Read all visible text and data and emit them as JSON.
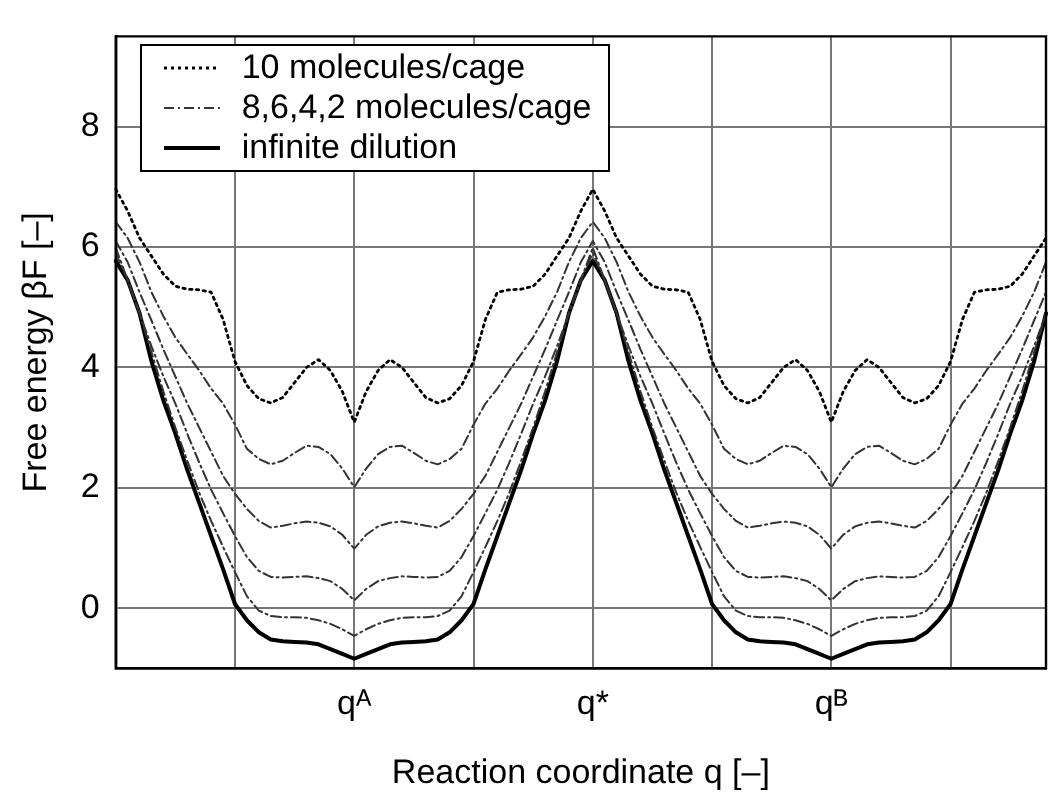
{
  "chart_data": {
    "type": "line",
    "xlabel": "Reaction coordinate q [–]",
    "ylabel": "Free energy βF [–]",
    "categories": [
      null,
      null,
      null,
      null,
      null,
      null,
      null,
      null,
      null,
      null,
      null,
      null,
      null,
      null,
      null,
      null,
      null,
      null,
      null,
      null,
      "qᴬ",
      null,
      null,
      null,
      null,
      null,
      null,
      null,
      null,
      null,
      null,
      null,
      null,
      null,
      null,
      null,
      null,
      null,
      null,
      null,
      "q*",
      null,
      null,
      null,
      null,
      null,
      null,
      null,
      null,
      null,
      null,
      null,
      null,
      null,
      null,
      null,
      null,
      null,
      null,
      null,
      "qᴮ",
      null,
      null,
      null,
      null,
      null,
      null,
      null,
      null,
      null,
      null,
      null,
      null,
      null,
      null,
      null,
      null,
      null,
      null
    ],
    "ylim": [
      -1,
      9.5
    ],
    "yticks": [
      0,
      2,
      4,
      6,
      8
    ],
    "grid": true,
    "legend": "top left",
    "marker": "none",
    "series": [
      {
        "name": "10 molecules/cage",
        "color": "#000000",
        "line_style": "dotted",
        "values": [
          6.96,
          6.6,
          6.15,
          5.85,
          5.55,
          5.35,
          5.3,
          5.29,
          5.25,
          4.8,
          4.1,
          3.7,
          3.48,
          3.41,
          3.5,
          3.75,
          4.0,
          4.13,
          3.95,
          3.6,
          3.09,
          3.6,
          3.95,
          4.13,
          4.0,
          3.75,
          3.5,
          3.41,
          3.48,
          3.7,
          4.1,
          4.8,
          5.25,
          5.29,
          5.3,
          5.35,
          5.55,
          5.85,
          6.15,
          6.6,
          6.96,
          6.6,
          6.15,
          5.85,
          5.55,
          5.35,
          5.3,
          5.29,
          5.25,
          4.8,
          4.1,
          3.7,
          3.48,
          3.41,
          3.5,
          3.75,
          4.0,
          4.13,
          3.95,
          3.6,
          3.09,
          3.6,
          3.95,
          4.13,
          4.0,
          3.75,
          3.5,
          3.41,
          3.48,
          3.7,
          4.1,
          4.8,
          5.25,
          5.29,
          5.3,
          5.35,
          5.55,
          5.85,
          6.15
        ]
      },
      {
        "name": "8,6,4,2 molecules/cage",
        "color": "#333333",
        "line_style": "dashed",
        "values": [
          6.42,
          6.15,
          5.75,
          5.25,
          4.85,
          4.5,
          4.22,
          3.95,
          3.65,
          3.4,
          3.05,
          2.65,
          2.48,
          2.39,
          2.45,
          2.58,
          2.7,
          2.68,
          2.56,
          2.32,
          2.01,
          2.32,
          2.56,
          2.68,
          2.7,
          2.58,
          2.45,
          2.39,
          2.48,
          2.65,
          3.05,
          3.4,
          3.65,
          3.95,
          4.22,
          4.5,
          4.85,
          5.25,
          5.75,
          6.15,
          6.42,
          6.15,
          5.75,
          5.25,
          4.85,
          4.5,
          4.22,
          3.95,
          3.65,
          3.4,
          3.05,
          2.65,
          2.48,
          2.39,
          2.45,
          2.58,
          2.7,
          2.68,
          2.56,
          2.32,
          2.01,
          2.32,
          2.56,
          2.68,
          2.7,
          2.58,
          2.45,
          2.39,
          2.48,
          2.65,
          3.05,
          3.4,
          3.65,
          3.95,
          4.22,
          4.5,
          4.85,
          5.25,
          5.75
        ]
      },
      {
        "color": "#333333",
        "line_style": "dashed",
        "values": [
          6.1,
          5.75,
          5.25,
          4.78,
          4.3,
          3.85,
          3.4,
          3.0,
          2.6,
          2.2,
          1.9,
          1.65,
          1.45,
          1.34,
          1.37,
          1.41,
          1.44,
          1.42,
          1.36,
          1.22,
          0.99,
          1.22,
          1.36,
          1.42,
          1.44,
          1.41,
          1.37,
          1.34,
          1.45,
          1.65,
          1.9,
          2.2,
          2.6,
          3.0,
          3.4,
          3.85,
          4.3,
          4.78,
          5.25,
          5.75,
          6.1,
          5.75,
          5.25,
          4.78,
          4.3,
          3.85,
          3.4,
          3.0,
          2.6,
          2.2,
          1.9,
          1.65,
          1.45,
          1.34,
          1.37,
          1.41,
          1.44,
          1.42,
          1.36,
          1.22,
          0.99,
          1.22,
          1.36,
          1.42,
          1.44,
          1.41,
          1.37,
          1.34,
          1.45,
          1.65,
          1.9,
          2.2,
          2.6,
          3.0,
          3.4,
          3.85,
          4.3,
          4.78,
          5.25
        ]
      },
      {
        "color": "#333333",
        "line_style": "dashed",
        "values": [
          5.99,
          5.45,
          4.9,
          4.35,
          3.85,
          3.4,
          2.9,
          2.42,
          1.97,
          1.58,
          1.2,
          0.85,
          0.62,
          0.52,
          0.51,
          0.52,
          0.53,
          0.5,
          0.45,
          0.32,
          0.13,
          0.32,
          0.45,
          0.5,
          0.53,
          0.52,
          0.51,
          0.52,
          0.62,
          0.85,
          1.2,
          1.58,
          1.97,
          2.42,
          2.9,
          3.4,
          3.85,
          4.35,
          4.9,
          5.45,
          5.99,
          5.45,
          4.9,
          4.35,
          3.85,
          3.4,
          2.9,
          2.42,
          1.97,
          1.58,
          1.2,
          0.85,
          0.62,
          0.52,
          0.51,
          0.52,
          0.53,
          0.5,
          0.45,
          0.32,
          0.13,
          0.32,
          0.45,
          0.5,
          0.53,
          0.52,
          0.51,
          0.52,
          0.62,
          0.85,
          1.2,
          1.58,
          1.97,
          2.42,
          2.9,
          3.4,
          3.85,
          4.35,
          4.9
        ]
      },
      {
        "color": "#333333",
        "line_style": "dashed",
        "values": [
          5.9,
          5.45,
          4.9,
          4.25,
          3.6,
          3.0,
          2.45,
          1.92,
          1.45,
          1.02,
          0.6,
          0.2,
          -0.04,
          -0.13,
          -0.15,
          -0.15,
          -0.16,
          -0.2,
          -0.26,
          -0.35,
          -0.46,
          -0.35,
          -0.26,
          -0.2,
          -0.16,
          -0.15,
          -0.15,
          -0.13,
          -0.04,
          0.2,
          0.6,
          1.02,
          1.45,
          1.92,
          2.45,
          3.0,
          3.6,
          4.25,
          4.9,
          5.45,
          5.9,
          5.45,
          4.9,
          4.25,
          3.6,
          3.0,
          2.45,
          1.92,
          1.45,
          1.02,
          0.6,
          0.2,
          -0.04,
          -0.13,
          -0.15,
          -0.15,
          -0.16,
          -0.2,
          -0.26,
          -0.35,
          -0.46,
          -0.35,
          -0.26,
          -0.2,
          -0.16,
          -0.15,
          -0.15,
          -0.13,
          -0.04,
          0.2,
          0.6,
          1.02,
          1.45,
          1.92,
          2.45,
          3.0,
          3.6,
          4.25,
          4.9
        ]
      },
      {
        "name": "infinite dilution",
        "color": "#000000",
        "line_style": "solid",
        "values": [
          5.77,
          5.45,
          4.9,
          4.1,
          3.45,
          2.9,
          2.3,
          1.75,
          1.2,
          0.65,
          0.07,
          -0.2,
          -0.4,
          -0.52,
          -0.55,
          -0.56,
          -0.57,
          -0.6,
          -0.68,
          -0.76,
          -0.84,
          -0.76,
          -0.68,
          -0.6,
          -0.57,
          -0.56,
          -0.55,
          -0.52,
          -0.4,
          -0.2,
          0.07,
          0.65,
          1.2,
          1.75,
          2.3,
          2.9,
          3.45,
          4.1,
          4.9,
          5.45,
          5.77,
          5.45,
          4.9,
          4.1,
          3.45,
          2.9,
          2.3,
          1.75,
          1.2,
          0.65,
          0.07,
          -0.2,
          -0.4,
          -0.52,
          -0.55,
          -0.56,
          -0.57,
          -0.6,
          -0.68,
          -0.76,
          -0.84,
          -0.76,
          -0.68,
          -0.6,
          -0.57,
          -0.56,
          -0.55,
          -0.52,
          -0.4,
          -0.2,
          0.07,
          0.65,
          1.2,
          1.75,
          2.3,
          2.9,
          3.45,
          4.1,
          4.9
        ]
      }
    ]
  }
}
